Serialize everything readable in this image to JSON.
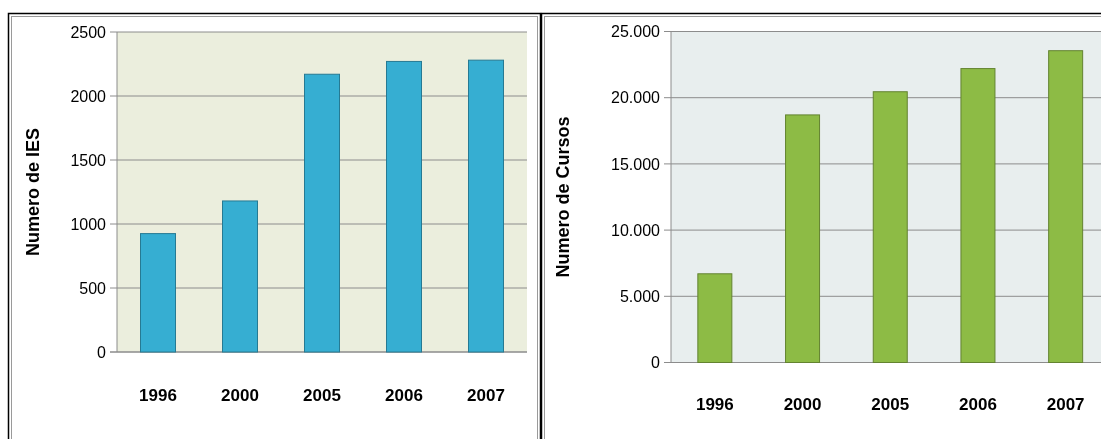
{
  "chart_data": [
    {
      "type": "bar",
      "categories": [
        "1996",
        "2000",
        "2005",
        "2006",
        "2007"
      ],
      "values": [
        925,
        1180,
        2170,
        2270,
        2280
      ],
      "color": "#36aed2",
      "ylabel": "Numero de IES",
      "ylim": [
        0,
        2500
      ],
      "yticks": [
        0,
        500,
        1000,
        1500,
        2000,
        2500
      ],
      "grid": "y"
    },
    {
      "type": "bar",
      "categories": [
        "1996",
        "2000",
        "2005",
        "2006",
        "2007"
      ],
      "values": [
        6700,
        18700,
        20450,
        22200,
        23550
      ],
      "color": "#8dbb45",
      "ylabel": "Numero de Cursos",
      "ylim": [
        0,
        25000
      ],
      "yticks": [
        0,
        {
          "value": 5000,
          "label": "5.000"
        },
        {
          "value": 10000,
          "label": "10.000"
        },
        {
          "value": 15000,
          "label": "15.000"
        },
        {
          "value": 20000,
          "label": "20.000"
        },
        {
          "value": 25000,
          "label": "25.000"
        }
      ],
      "grid": "y"
    }
  ]
}
